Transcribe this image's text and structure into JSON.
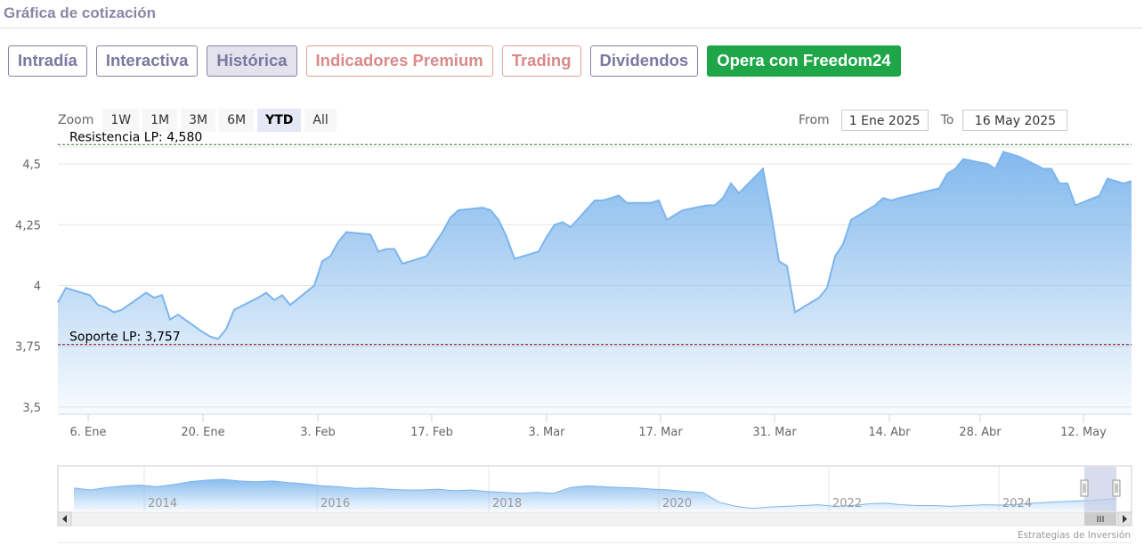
{
  "header": {
    "title": "Gráfica de cotización"
  },
  "tabs": [
    {
      "label": "Intradía",
      "style": "default"
    },
    {
      "label": "Interactiva",
      "style": "default"
    },
    {
      "label": "Histórica",
      "style": "active"
    },
    {
      "label": "Indicadores Premium",
      "style": "premium"
    },
    {
      "label": "Trading",
      "style": "premium"
    },
    {
      "label": "Dividendos",
      "style": "default"
    },
    {
      "label": "Opera con Freedom24",
      "style": "cta"
    }
  ],
  "zoom": {
    "label": "Zoom",
    "buttons": [
      "1W",
      "1M",
      "3M",
      "6M",
      "YTD",
      "All"
    ],
    "active": "YTD"
  },
  "range": {
    "from_label": "From",
    "from_value": "1 Ene 2025",
    "to_label": "To",
    "to_value": "16 May 2025"
  },
  "credits": "Estrategias de Inversión",
  "colors": {
    "line": "#7cb5ec",
    "resistance": "#2e7d32",
    "support": "#8b0000",
    "cta": "#1ea649",
    "navigator_mask": "#c7cde6"
  },
  "chart_data": {
    "type": "area",
    "x_ticks": [
      "6. Ene",
      "20. Ene",
      "3. Feb",
      "17. Feb",
      "3. Mar",
      "17. Mar",
      "31. Mar",
      "14. Abr",
      "28. Abr",
      "12. May"
    ],
    "y_ticks": [
      "3,5",
      "3,75",
      "4",
      "4,25",
      "4,5"
    ],
    "ylim": [
      3.47,
      4.57
    ],
    "x": [
      "2025-01-02",
      "2025-01-03",
      "2025-01-06",
      "2025-01-07",
      "2025-01-08",
      "2025-01-09",
      "2025-01-10",
      "2025-01-13",
      "2025-01-14",
      "2025-01-15",
      "2025-01-16",
      "2025-01-17",
      "2025-01-20",
      "2025-01-21",
      "2025-01-22",
      "2025-01-23",
      "2025-01-24",
      "2025-01-27",
      "2025-01-28",
      "2025-01-29",
      "2025-01-30",
      "2025-01-31",
      "2025-02-03",
      "2025-02-04",
      "2025-02-05",
      "2025-02-06",
      "2025-02-07",
      "2025-02-10",
      "2025-02-11",
      "2025-02-12",
      "2025-02-13",
      "2025-02-14",
      "2025-02-17",
      "2025-02-18",
      "2025-02-19",
      "2025-02-20",
      "2025-02-21",
      "2025-02-24",
      "2025-02-25",
      "2025-02-26",
      "2025-02-27",
      "2025-02-28",
      "2025-03-03",
      "2025-03-04",
      "2025-03-05",
      "2025-03-06",
      "2025-03-07",
      "2025-03-10",
      "2025-03-11",
      "2025-03-12",
      "2025-03-13",
      "2025-03-14",
      "2025-03-17",
      "2025-03-18",
      "2025-03-19",
      "2025-03-20",
      "2025-03-21",
      "2025-03-24",
      "2025-03-25",
      "2025-03-26",
      "2025-03-27",
      "2025-03-28",
      "2025-03-31",
      "2025-04-01",
      "2025-04-02",
      "2025-04-03",
      "2025-04-04",
      "2025-04-07",
      "2025-04-08",
      "2025-04-09",
      "2025-04-10",
      "2025-04-11",
      "2025-04-14",
      "2025-04-15",
      "2025-04-16",
      "2025-04-17",
      "2025-04-22",
      "2025-04-23",
      "2025-04-24",
      "2025-04-25",
      "2025-04-28",
      "2025-04-29",
      "2025-04-30",
      "2025-05-02",
      "2025-05-05",
      "2025-05-06",
      "2025-05-07",
      "2025-05-08",
      "2025-05-09",
      "2025-05-12",
      "2025-05-13",
      "2025-05-14",
      "2025-05-15",
      "2025-05-16"
    ],
    "values": [
      3.93,
      3.99,
      3.96,
      3.92,
      3.91,
      3.89,
      3.9,
      3.97,
      3.95,
      3.96,
      3.86,
      3.88,
      3.81,
      3.79,
      3.78,
      3.82,
      3.9,
      3.95,
      3.97,
      3.94,
      3.96,
      3.92,
      4.0,
      4.1,
      4.12,
      4.18,
      4.22,
      4.21,
      4.14,
      4.15,
      4.15,
      4.09,
      4.12,
      4.17,
      4.22,
      4.28,
      4.31,
      4.32,
      4.31,
      4.27,
      4.2,
      4.11,
      4.14,
      4.2,
      4.25,
      4.26,
      4.24,
      4.35,
      4.35,
      4.36,
      4.37,
      4.34,
      4.34,
      4.35,
      4.27,
      4.29,
      4.31,
      4.33,
      4.33,
      4.36,
      4.42,
      4.38,
      4.48,
      4.3,
      4.1,
      4.08,
      3.89,
      3.95,
      3.99,
      4.12,
      4.17,
      4.27,
      4.33,
      4.36,
      4.35,
      4.36,
      4.4,
      4.46,
      4.48,
      4.52,
      4.5,
      4.48,
      4.55,
      4.53,
      4.48,
      4.48,
      4.42,
      4.42,
      4.33,
      4.37,
      4.44,
      4.43,
      4.42,
      4.43
    ],
    "plot_lines": [
      {
        "label": "Resistencia LP: 4,580",
        "value": 4.58,
        "style": "dashed",
        "color": "#2e7d32"
      },
      {
        "label": "Soporte LP: 3,757",
        "value": 3.757,
        "style": "dashed",
        "color": "#8b0000"
      }
    ],
    "navigator": {
      "x_labels": [
        "2014",
        "2016",
        "2018",
        "2020",
        "2022",
        "2024"
      ],
      "values": [
        0.55,
        0.5,
        0.56,
        0.6,
        0.62,
        0.58,
        0.63,
        0.7,
        0.74,
        0.76,
        0.72,
        0.7,
        0.72,
        0.68,
        0.65,
        0.6,
        0.58,
        0.54,
        0.55,
        0.52,
        0.5,
        0.5,
        0.52,
        0.48,
        0.5,
        0.46,
        0.44,
        0.42,
        0.44,
        0.42,
        0.56,
        0.6,
        0.58,
        0.56,
        0.55,
        0.52,
        0.5,
        0.46,
        0.44,
        0.2,
        0.1,
        0.05,
        0.08,
        0.1,
        0.12,
        0.14,
        0.1,
        0.12,
        0.16,
        0.18,
        0.14,
        0.12,
        0.12,
        0.1,
        0.12,
        0.14,
        0.13,
        0.15,
        0.18,
        0.2,
        0.22,
        0.24,
        0.26,
        0.3
      ],
      "selection": "1 Ene 2025 – 16 May 2025"
    },
    "grid": true,
    "legend": "none"
  }
}
